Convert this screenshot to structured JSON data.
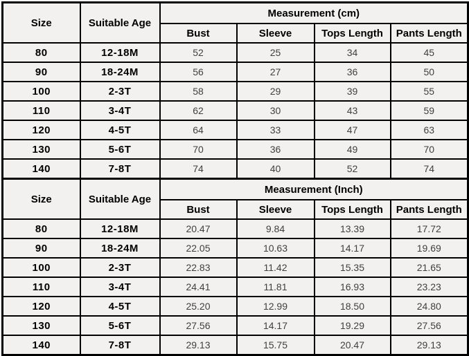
{
  "colors": {
    "cell_background": "#f2f1ef",
    "grid_border": "#000000",
    "header_text": "#000000",
    "value_text": "#3f3f3f",
    "page_background": "#ffffff"
  },
  "chart_data": [
    {
      "type": "table",
      "title": "Measurement (cm)",
      "size_header": "Size",
      "age_header": "Suitable Age",
      "measurement_header": "Measurement (cm)",
      "sub_columns": [
        "Bust",
        "Sleeve",
        "Tops Length",
        "Pants Length"
      ],
      "rows": [
        {
          "size": "80",
          "age": "12-18M",
          "values": [
            "52",
            "25",
            "34",
            "45"
          ]
        },
        {
          "size": "90",
          "age": "18-24M",
          "values": [
            "56",
            "27",
            "36",
            "50"
          ]
        },
        {
          "size": "100",
          "age": "2-3T",
          "values": [
            "58",
            "29",
            "39",
            "55"
          ]
        },
        {
          "size": "110",
          "age": "3-4T",
          "values": [
            "62",
            "30",
            "43",
            "59"
          ]
        },
        {
          "size": "120",
          "age": "4-5T",
          "values": [
            "64",
            "33",
            "47",
            "63"
          ]
        },
        {
          "size": "130",
          "age": "5-6T",
          "values": [
            "70",
            "36",
            "49",
            "70"
          ]
        },
        {
          "size": "140",
          "age": "7-8T",
          "values": [
            "74",
            "40",
            "52",
            "74"
          ]
        }
      ]
    },
    {
      "type": "table",
      "title": "Measurement (Inch)",
      "size_header": "Size",
      "age_header": "Suitable Age",
      "measurement_header": "Measurement (Inch)",
      "sub_columns": [
        "Bust",
        "Sleeve",
        "Tops Length",
        "Pants Length"
      ],
      "rows": [
        {
          "size": "80",
          "age": "12-18M",
          "values": [
            "20.47",
            "9.84",
            "13.39",
            "17.72"
          ]
        },
        {
          "size": "90",
          "age": "18-24M",
          "values": [
            "22.05",
            "10.63",
            "14.17",
            "19.69"
          ]
        },
        {
          "size": "100",
          "age": "2-3T",
          "values": [
            "22.83",
            "11.42",
            "15.35",
            "21.65"
          ]
        },
        {
          "size": "110",
          "age": "3-4T",
          "values": [
            "24.41",
            "11.81",
            "16.93",
            "23.23"
          ]
        },
        {
          "size": "120",
          "age": "4-5T",
          "values": [
            "25.20",
            "12.99",
            "18.50",
            "24.80"
          ]
        },
        {
          "size": "130",
          "age": "5-6T",
          "values": [
            "27.56",
            "14.17",
            "19.29",
            "27.56"
          ]
        },
        {
          "size": "140",
          "age": "7-8T",
          "values": [
            "29.13",
            "15.75",
            "20.47",
            "29.13"
          ]
        }
      ]
    }
  ]
}
